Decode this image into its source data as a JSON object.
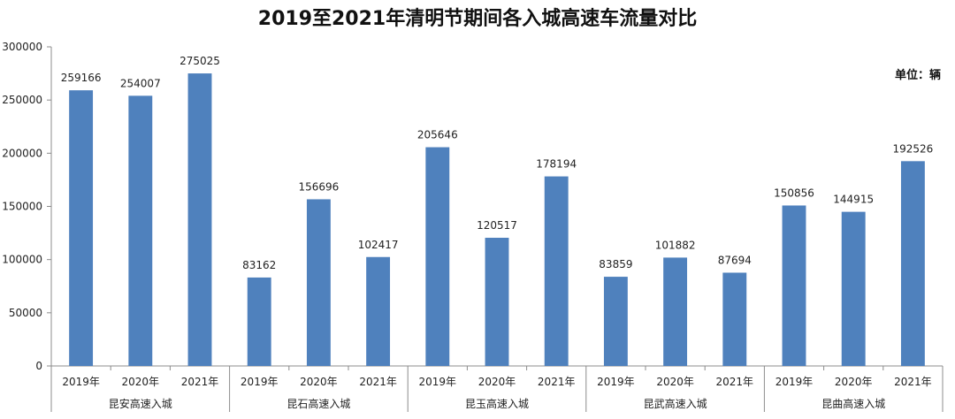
{
  "chart_data": {
    "type": "bar",
    "title": "2019至2021年清明节期间各入城高速车流量对比",
    "unit_label": "单位：辆",
    "ylim": [
      0,
      300000
    ],
    "yticks": [
      "0",
      "50000",
      "100000",
      "150000",
      "200000",
      "250000",
      "300000"
    ],
    "grid": false,
    "legend": "none",
    "bar_color": "#4f81bd",
    "groups": [
      {
        "name": "昆安高速入城",
        "categories": [
          "2019年",
          "2020年",
          "2021年"
        ],
        "values": [
          259166,
          254007,
          275025
        ]
      },
      {
        "name": "昆石高速入城",
        "categories": [
          "2019年",
          "2020年",
          "2021年"
        ],
        "values": [
          83162,
          156696,
          102417
        ]
      },
      {
        "name": "昆玉高速入城",
        "categories": [
          "2019年",
          "2020年",
          "2021年"
        ],
        "values": [
          205646,
          120517,
          178194
        ]
      },
      {
        "name": "昆武高速入城",
        "categories": [
          "2019年",
          "2020年",
          "2021年"
        ],
        "values": [
          83859,
          101882,
          87694
        ]
      },
      {
        "name": "昆曲高速入城",
        "categories": [
          "2019年",
          "2020年",
          "2021年"
        ],
        "values": [
          150856,
          144915,
          192526
        ]
      }
    ]
  }
}
